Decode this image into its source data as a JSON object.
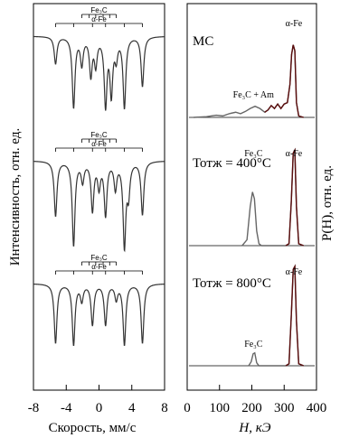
{
  "chart_data": [
    {
      "type": "line",
      "panel": "mossbauer-spectra",
      "xlabel": "Скорость, мм/с",
      "ylabel": "Интенсивность, отн. ед.",
      "xlim": [
        -8,
        8
      ],
      "xticks": [
        "-8",
        "-4",
        "0",
        "4",
        "8"
      ],
      "spectra": [
        {
          "markers": [
            {
              "label": "Fe₃C",
              "lines": [
                -2.1,
                -1.2,
                -0.4,
                0.5,
                1.3,
                2.1
              ]
            },
            {
              "label": "α-Fe",
              "lines": [
                -5.3,
                -3.1,
                -0.8,
                0.8,
                3.1,
                5.3
              ]
            }
          ],
          "lines": [
            {
              "v": -5.3,
              "d": 0.3
            },
            {
              "v": -3.1,
              "d": 0.78
            },
            {
              "v": -2.1,
              "d": 0.3
            },
            {
              "v": -1.0,
              "d": 0.42
            },
            {
              "v": -0.4,
              "d": 0.3
            },
            {
              "v": 0.8,
              "d": 0.75
            },
            {
              "v": 1.5,
              "d": 0.62
            },
            {
              "v": 2.1,
              "d": 0.22
            },
            {
              "v": 3.1,
              "d": 0.78
            },
            {
              "v": 5.3,
              "d": 0.55
            }
          ]
        },
        {
          "markers": [
            {
              "label": "Fe₃C",
              "lines": [
                -2.1,
                -1.2,
                -0.4,
                0.5,
                1.3,
                2.1
              ]
            },
            {
              "label": "α-Fe",
              "lines": [
                -5.3,
                -3.1,
                -0.8,
                0.8,
                3.1,
                5.3
              ]
            }
          ],
          "lines": [
            {
              "v": -5.3,
              "d": 0.62
            },
            {
              "v": -3.1,
              "d": 0.95
            },
            {
              "v": -2.0,
              "d": 0.22
            },
            {
              "v": -0.8,
              "d": 0.55
            },
            {
              "v": 0.0,
              "d": 0.28
            },
            {
              "v": 0.8,
              "d": 0.6
            },
            {
              "v": 2.0,
              "d": 0.3
            },
            {
              "v": 3.1,
              "d": 0.95
            },
            {
              "v": 3.6,
              "d": 0.35
            },
            {
              "v": 5.3,
              "d": 0.6
            }
          ]
        },
        {
          "markers": [
            {
              "label": "Fe₃C",
              "lines": [
                -2.1,
                -1.2,
                -0.4,
                0.5,
                1.3,
                2.1
              ]
            },
            {
              "label": "α-Fe",
              "lines": [
                -5.3,
                -3.1,
                -0.8,
                0.8,
                3.1,
                5.3
              ]
            }
          ],
          "lines": [
            {
              "v": -5.3,
              "d": 0.8
            },
            {
              "v": -3.1,
              "d": 0.82
            },
            {
              "v": -2.1,
              "d": 0.22
            },
            {
              "v": -0.8,
              "d": 0.55
            },
            {
              "v": 0.8,
              "d": 0.55
            },
            {
              "v": 2.1,
              "d": 0.2
            },
            {
              "v": 3.1,
              "d": 0.82
            },
            {
              "v": 5.3,
              "d": 0.8
            }
          ]
        }
      ]
    },
    {
      "type": "line",
      "panel": "hyperfine-field-distributions",
      "xlabel": "H, кЭ",
      "ylabel": "P(H), отн. ед.",
      "xlim": [
        0,
        400
      ],
      "xticks": [
        "0",
        "100",
        "200",
        "300",
        "400"
      ],
      "distributions": [
        {
          "label": "МС",
          "annotations": [
            {
              "text": "α-Fe",
              "at": 330
            },
            {
              "text": "Fe₃C + Am",
              "at": 205
            }
          ],
          "points": [
            [
              20,
              0.0
            ],
            [
              60,
              0.01
            ],
            [
              90,
              0.03
            ],
            [
              110,
              0.02
            ],
            [
              130,
              0.05
            ],
            [
              150,
              0.07
            ],
            [
              165,
              0.05
            ],
            [
              180,
              0.08
            ],
            [
              195,
              0.12
            ],
            [
              210,
              0.15
            ],
            [
              225,
              0.12
            ],
            [
              240,
              0.07
            ],
            [
              250,
              0.1
            ],
            [
              260,
              0.16
            ],
            [
              270,
              0.12
            ],
            [
              280,
              0.18
            ],
            [
              290,
              0.12
            ],
            [
              300,
              0.18
            ],
            [
              310,
              0.2
            ],
            [
              318,
              0.45
            ],
            [
              323,
              0.85
            ],
            [
              328,
              0.98
            ],
            [
              333,
              0.9
            ],
            [
              338,
              0.2
            ],
            [
              345,
              0.02
            ],
            [
              360,
              0.0
            ]
          ]
        },
        {
          "label": "Тотж = 400°C",
          "annotations": [
            {
              "text": "Fe₃C",
              "at": 205
            },
            {
              "text": "α-Fe",
              "at": 330
            }
          ],
          "points": [
            [
              170,
              0.0
            ],
            [
              185,
              0.06
            ],
            [
              195,
              0.4
            ],
            [
              202,
              0.55
            ],
            [
              208,
              0.48
            ],
            [
              215,
              0.15
            ],
            [
              222,
              0.02
            ],
            [
              230,
              0.0
            ],
            [
              305,
              0.0
            ],
            [
              315,
              0.02
            ],
            [
              322,
              0.45
            ],
            [
              328,
              0.95
            ],
            [
              333,
              0.98
            ],
            [
              338,
              0.4
            ],
            [
              345,
              0.02
            ],
            [
              360,
              0.0
            ]
          ]
        },
        {
          "label": "Тотж = 800°C",
          "annotations": [
            {
              "text": "Fe₃C",
              "at": 205
            },
            {
              "text": "α-Fe",
              "at": 330
            }
          ],
          "points": [
            [
              190,
              0.0
            ],
            [
              198,
              0.04
            ],
            [
              204,
              0.12
            ],
            [
              209,
              0.13
            ],
            [
              215,
              0.03
            ],
            [
              222,
              0.0
            ],
            [
              305,
              0.0
            ],
            [
              315,
              0.02
            ],
            [
              322,
              0.5
            ],
            [
              328,
              0.97
            ],
            [
              333,
              1.0
            ],
            [
              338,
              0.45
            ],
            [
              345,
              0.02
            ],
            [
              360,
              0.0
            ]
          ]
        }
      ]
    }
  ]
}
